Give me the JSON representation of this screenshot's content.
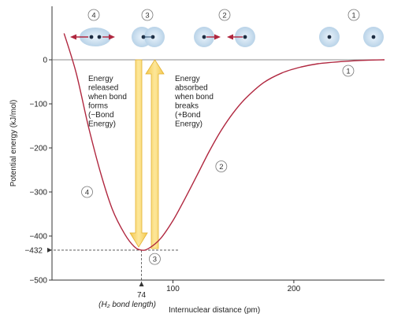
{
  "chart_data": {
    "type": "line",
    "title": "",
    "ylabel": "Potential energy (kJ/mol)",
    "xlabel": "Internuclear distance (pm)",
    "ylim": [
      -500,
      0
    ],
    "xlim": [
      0,
      275
    ],
    "y_ticks": [
      0,
      -100,
      -200,
      -300,
      -400,
      -500
    ],
    "y_tick_labels": [
      "0",
      "−100",
      "−200",
      "−300",
      "−400",
      "−500"
    ],
    "x_ticks": [
      100,
      200
    ],
    "x_tick_labels": [
      "100",
      "200"
    ],
    "series": [
      {
        "x": [
          10,
          20,
          30,
          40,
          50,
          60,
          68,
          74,
          80,
          90,
          100,
          110,
          120,
          130,
          140,
          150,
          160,
          175,
          190,
          205,
          220,
          240,
          260,
          275
        ],
        "y": [
          60,
          -30,
          -150,
          -255,
          -340,
          -395,
          -424,
          -432,
          -428,
          -405,
          -365,
          -315,
          -262,
          -208,
          -160,
          -120,
          -88,
          -52,
          -30,
          -17,
          -9,
          -4,
          -1,
          0
        ]
      }
    ],
    "minimum": {
      "x": 74,
      "y": -432,
      "x_label": "74",
      "y_label": "−432",
      "bond_length_label": "(H₂ bond length)"
    },
    "point_labels": [
      {
        "id": "1",
        "x": 245,
        "y": -25
      },
      {
        "id": "2",
        "x": 140,
        "y": -242
      },
      {
        "id": "3",
        "x": 85,
        "y": -452
      },
      {
        "id": "4",
        "x": 29,
        "y": -300
      }
    ],
    "arrows": [
      {
        "direction": "down",
        "label_lines": [
          "Energy",
          "released",
          "when bond",
          "forms",
          "(−Bond",
          "Energy)"
        ]
      },
      {
        "direction": "up",
        "label_lines": [
          "Energy",
          "absorbed",
          "when bond",
          "breaks",
          "(+Bond",
          "Energy)"
        ]
      }
    ],
    "atom_diagrams": [
      {
        "id": "4",
        "state": "repelling"
      },
      {
        "id": "3",
        "state": "bonded"
      },
      {
        "id": "2",
        "state": "attracting"
      },
      {
        "id": "1",
        "state": "separated"
      }
    ],
    "colors": {
      "curve": "#b0273f",
      "arrow_fill": "#f8d66a",
      "arrow_edge": "#e6b93a",
      "atom_cloud": "#c7dcec",
      "atom_core": "#2b4a6b",
      "force_arrow": "#b0273f"
    }
  }
}
